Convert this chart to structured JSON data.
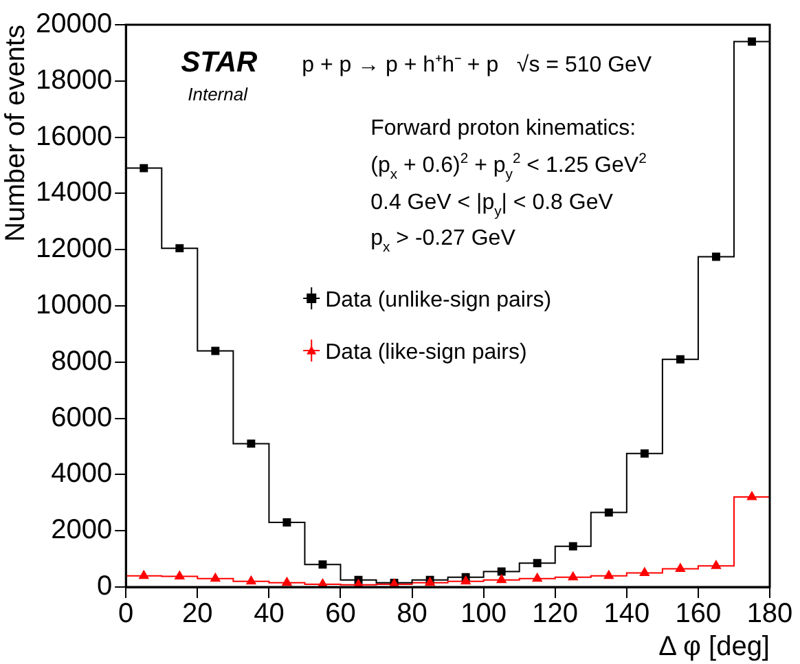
{
  "chart_data": {
    "type": "histogram",
    "xlabel": "Δ φ [deg]",
    "ylabel": "Number of events",
    "bins": [
      0,
      10,
      20,
      30,
      40,
      50,
      60,
      70,
      80,
      90,
      100,
      110,
      120,
      130,
      140,
      150,
      160,
      170,
      180
    ],
    "series": [
      {
        "name": "Data (unlike-sign pairs)",
        "color": "#000000",
        "marker": "square",
        "values": [
          14900,
          12050,
          8400,
          5100,
          2300,
          800,
          250,
          150,
          250,
          350,
          550,
          850,
          1450,
          2650,
          4750,
          8100,
          11750,
          19400
        ]
      },
      {
        "name": "Data (like-sign pairs)",
        "color": "#ff0000",
        "marker": "triangle",
        "values": [
          400,
          380,
          300,
          200,
          150,
          100,
          80,
          100,
          150,
          200,
          250,
          300,
          350,
          400,
          500,
          650,
          750,
          3200
        ]
      },
      {
        "type": "scatter",
        "color": "#000000",
        "marker": "square",
        "x": [
          5,
          15,
          25,
          35,
          45,
          55,
          65,
          75,
          85,
          95,
          105,
          115,
          125,
          135,
          145,
          155,
          165,
          175
        ],
        "values": [
          14900,
          12050,
          8400,
          5100,
          2300,
          800,
          250,
          150,
          250,
          350,
          550,
          850,
          1450,
          2650,
          4750,
          8100,
          11750,
          19400
        ]
      },
      {
        "type": "scatter",
        "color": "#ff0000",
        "marker": "triangle",
        "x": [
          5,
          15,
          25,
          35,
          45,
          55,
          65,
          75,
          85,
          95,
          105,
          115,
          125,
          135,
          145,
          155,
          165,
          175
        ],
        "values": [
          400,
          380,
          300,
          200,
          150,
          100,
          80,
          100,
          150,
          200,
          250,
          300,
          350,
          400,
          500,
          650,
          750,
          3200
        ]
      }
    ],
    "xlim": [
      0,
      180
    ],
    "xticks": [
      0,
      20,
      40,
      60,
      80,
      100,
      120,
      140,
      160,
      180
    ],
    "ylim": [
      0,
      20000
    ],
    "yticks": [
      0,
      2000,
      4000,
      6000,
      8000,
      10000,
      12000,
      14000,
      16000,
      18000,
      20000
    ],
    "grid": false,
    "legend": "left",
    "annotations": [
      "STAR",
      "Internal",
      "p + p → p + h⁺h⁻ + p   √s = 510 GeV",
      "Forward proton kinematics:",
      "(p$_{x}$ + 0.6)$^{2}$ + p$_{y}$$^{2}$ < 1.25 GeV$^{2}$",
      "0.4 GeV < |p$_{y}$| < 0.8 GeV",
      "p$_{x}$ > -0.27 GeV"
    ]
  }
}
